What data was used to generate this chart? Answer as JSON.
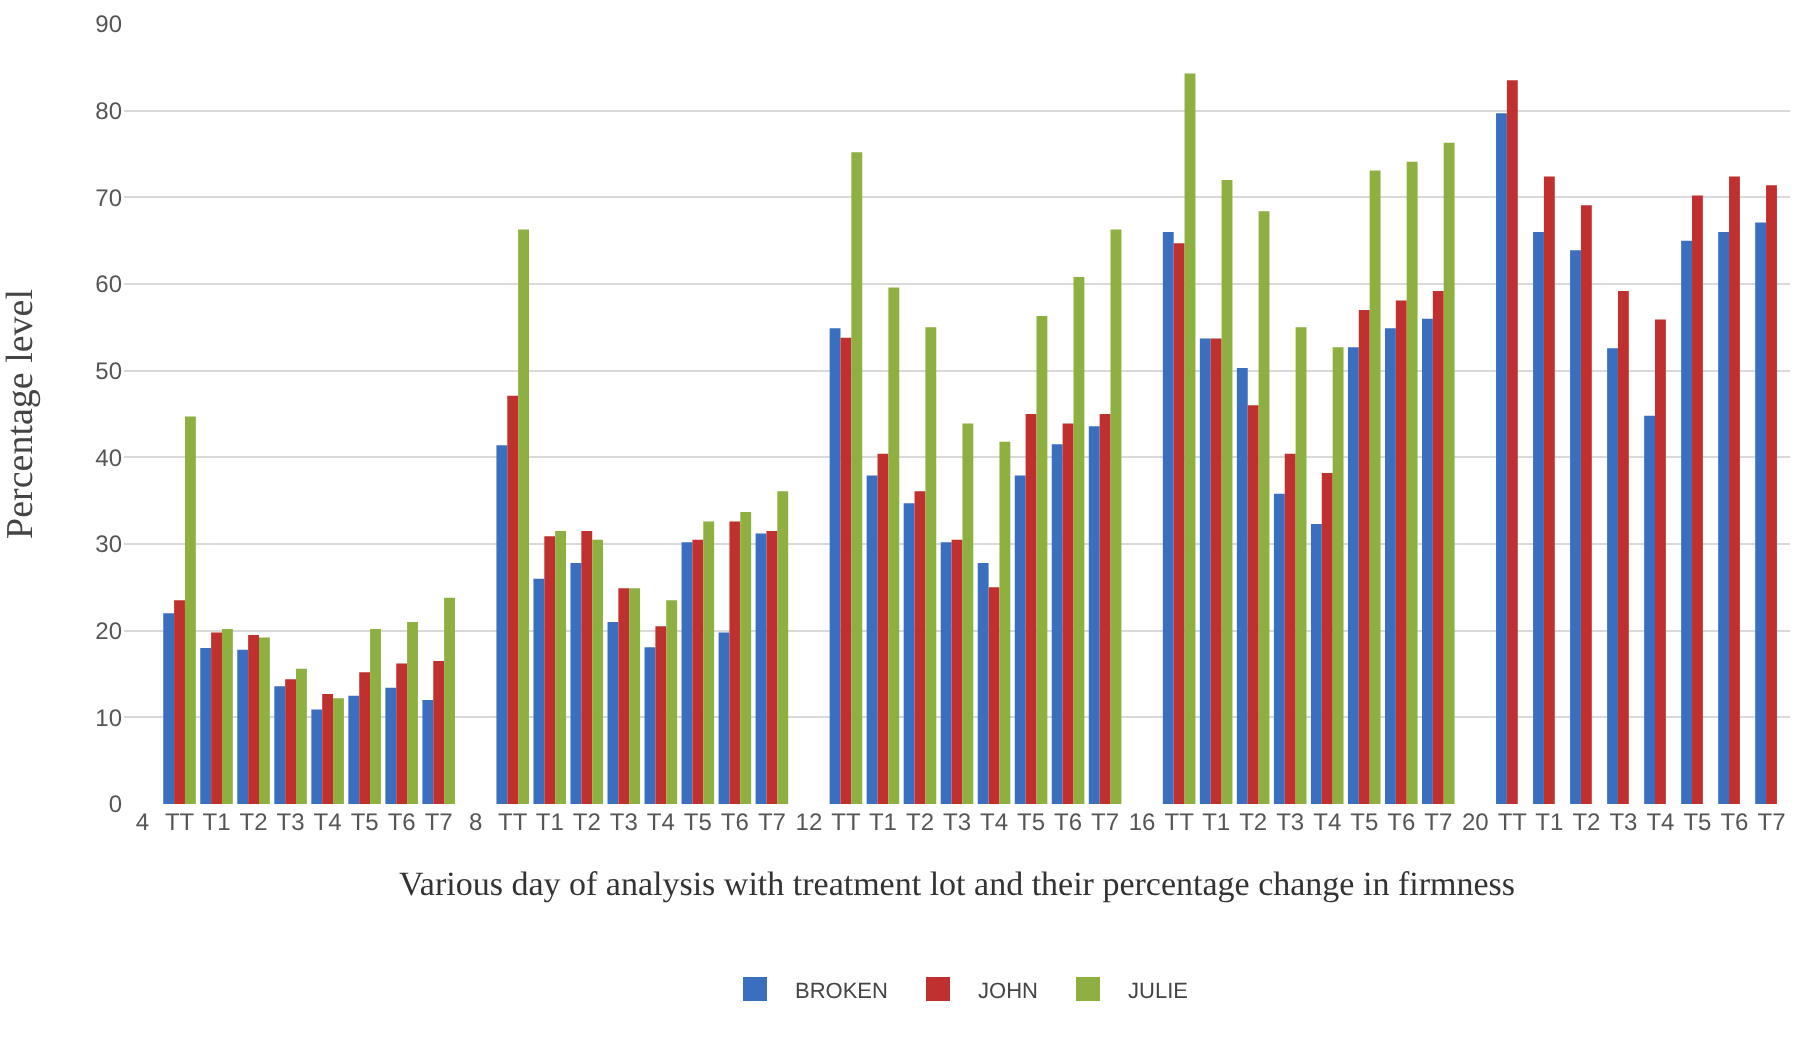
{
  "chart_data": {
    "type": "bar",
    "xlabel": "Various day of analysis with treatment lot and their percentage change in firmness",
    "ylabel": "Percentage level",
    "categories": [
      "4",
      "TT",
      "T1",
      "T2",
      "T3",
      "T4",
      "T5",
      "T6",
      "T7",
      "8",
      "TT",
      "T1",
      "T2",
      "T3",
      "T4",
      "T5",
      "T6",
      "T7",
      "12",
      "TT",
      "T1",
      "T2",
      "T3",
      "T4",
      "T5",
      "T6",
      "T7",
      "16",
      "TT",
      "T1",
      "T2",
      "T3",
      "T4",
      "T5",
      "T6",
      "T7",
      "20",
      "TT",
      "T1",
      "T2",
      "T3",
      "T4",
      "T5",
      "T6",
      "T7"
    ],
    "series": [
      {
        "name": "BROKEN",
        "color": "#3a6fc0",
        "values": [
          null,
          22,
          18,
          17.8,
          13.6,
          10.9,
          12.5,
          13.4,
          12,
          null,
          41.4,
          26,
          27.8,
          21,
          18.1,
          30.2,
          19.8,
          31.2,
          null,
          54.9,
          37.9,
          34.7,
          30.2,
          27.8,
          37.9,
          41.5,
          43.6,
          null,
          66,
          53.7,
          50.3,
          35.8,
          32.3,
          52.7,
          54.9,
          56,
          null,
          79.7,
          66,
          63.9,
          52.6,
          44.8,
          65,
          66,
          67.1
        ]
      },
      {
        "name": "JOHN",
        "color": "#c0302e",
        "values": [
          null,
          23.5,
          19.8,
          19.5,
          14.4,
          12.7,
          15.2,
          16.2,
          16.5,
          null,
          47.1,
          30.9,
          31.5,
          24.9,
          20.5,
          30.5,
          32.6,
          31.5,
          null,
          53.8,
          40.4,
          36.1,
          30.5,
          25,
          45,
          43.9,
          45,
          null,
          64.7,
          53.7,
          46,
          40.4,
          38.2,
          57,
          58.1,
          59.2,
          null,
          83.5,
          72.4,
          69.1,
          59.2,
          55.9,
          70.2,
          72.4,
          71.4
        ]
      },
      {
        "name": "JULIE",
        "color": "#8db040",
        "values": [
          null,
          44.7,
          20.2,
          19.2,
          15.6,
          12.2,
          20.2,
          21,
          23.8,
          null,
          66.3,
          31.5,
          30.5,
          24.9,
          23.5,
          32.6,
          33.7,
          36.1,
          null,
          75.2,
          59.6,
          55,
          43.9,
          41.8,
          56.3,
          60.8,
          66.3,
          null,
          84.3,
          72,
          68.4,
          55,
          52.7,
          73.1,
          74.1,
          76.3,
          null,
          null,
          null,
          null,
          null,
          null,
          null,
          null,
          null
        ]
      }
    ],
    "ylim": [
      0,
      90
    ],
    "yticks": [
      0,
      10,
      20,
      30,
      40,
      50,
      60,
      70,
      80,
      90
    ],
    "grid": "y",
    "legend": "bottom"
  }
}
